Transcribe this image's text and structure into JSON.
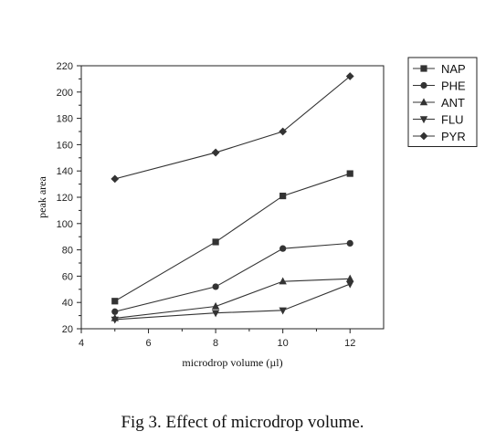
{
  "caption": "Fig 3. Effect of microdrop volume.",
  "chart_data": {
    "type": "line",
    "xlabel": "microdrop volume (µl)",
    "ylabel": "peak area",
    "xlim": [
      4,
      13
    ],
    "ylim": [
      20,
      220
    ],
    "xticks": [
      4,
      6,
      8,
      10,
      12
    ],
    "yticks": [
      20,
      40,
      60,
      80,
      100,
      120,
      140,
      160,
      180,
      200,
      220
    ],
    "legend_position": "top-right",
    "x": [
      5,
      8,
      10,
      12
    ],
    "series": [
      {
        "name": "NAP",
        "marker": "square",
        "values": [
          41,
          86,
          121,
          138
        ]
      },
      {
        "name": "PHE",
        "marker": "circle",
        "values": [
          33,
          52,
          81,
          85
        ]
      },
      {
        "name": "ANT",
        "marker": "triangle-up",
        "values": [
          28,
          37,
          56,
          58
        ]
      },
      {
        "name": "FLU",
        "marker": "triangle-down",
        "values": [
          27,
          32,
          34,
          54
        ]
      },
      {
        "name": "PYR",
        "marker": "diamond",
        "values": [
          134,
          154,
          170,
          212
        ]
      }
    ],
    "line_color": "#333333"
  }
}
